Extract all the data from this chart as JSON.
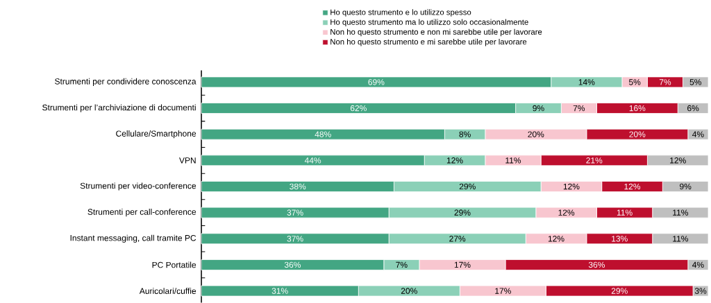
{
  "chart_data": {
    "type": "bar",
    "orientation": "horizontal",
    "stacked": true,
    "legend": "top",
    "categories": [
      "Strumenti per condividere conoscenza",
      "Strumenti per l’archiviazione di documenti",
      "Cellulare/Smartphone",
      "VPN",
      "Strumenti per video-conference",
      "Strumenti per call-conference",
      "Instant messaging, call tramite PC",
      "PC Portatile",
      "Auricolari/cuffie"
    ],
    "series": [
      {
        "name": "Ho questo strumento e lo utilizzo spesso",
        "color": "#43a683",
        "values": [
          69,
          62,
          48,
          44,
          38,
          37,
          37,
          36,
          31
        ],
        "value_labels": [
          "69%",
          "62%",
          "48%",
          "44%",
          "38%",
          "37%",
          "37%",
          "36%",
          "31%"
        ]
      },
      {
        "name": "Ho questo strumento ma lo utilizzo solo occasionalmente",
        "color": "#8bd0b7",
        "values": [
          14,
          9,
          8,
          12,
          29,
          29,
          27,
          7,
          20
        ],
        "value_labels": [
          "14%",
          "9%",
          "8%",
          "12%",
          "29%",
          "29%",
          "27%",
          "7%",
          "20%"
        ]
      },
      {
        "name": "Non ho questo strumento e non mi sarebbe utile per lavorare",
        "color": "#f8c6cf",
        "values": [
          5,
          7,
          20,
          11,
          12,
          12,
          12,
          17,
          17
        ],
        "value_labels": [
          "5%",
          "7%",
          "20%",
          "11%",
          "12%",
          "12%",
          "12%",
          "17%",
          "17%"
        ]
      },
      {
        "name": "Non ho questo strumento e mi sarebbe utile per lavorare",
        "color": "#be0f2e",
        "values": [
          7,
          16,
          20,
          21,
          12,
          11,
          13,
          36,
          29
        ],
        "value_labels": [
          "7%",
          "16%",
          "20%",
          "21%",
          "12%",
          "11%",
          "13%",
          "36%",
          "29%"
        ]
      },
      {
        "color": "#bfbfbf",
        "values": [
          5,
          6,
          4,
          12,
          9,
          11,
          11,
          4,
          3
        ],
        "value_labels": [
          "5%",
          "6%",
          "4%",
          "12%",
          "9%",
          "11%",
          "11%",
          "4%",
          "3%"
        ]
      }
    ]
  }
}
